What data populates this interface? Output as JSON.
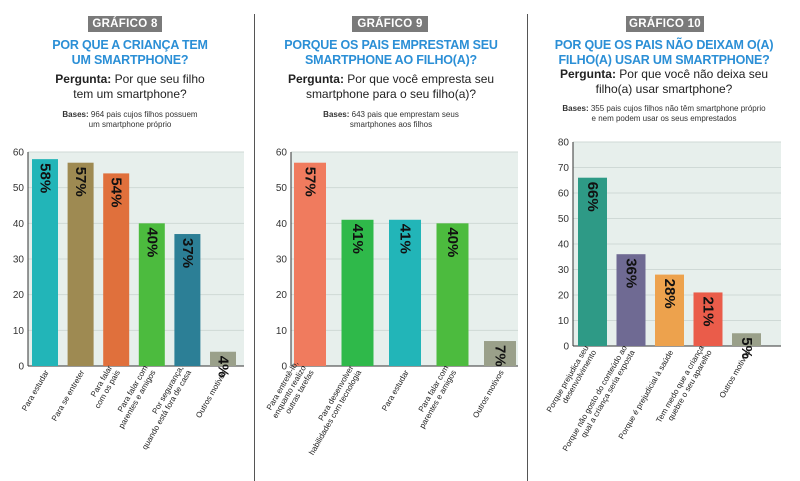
{
  "colors": {
    "title": "#2b8fd6",
    "plot_bg": "#e7efec",
    "badge_bg": "#7a7a7a"
  },
  "chart_data": [
    {
      "type": "bar",
      "badge": "GRÁFICO 8",
      "title_lines": [
        "POR QUE A CRIANÇA TEM",
        "UM SMARTPHONE?"
      ],
      "question_label": "Pergunta:",
      "question_lines": [
        " Por que seu filho",
        "tem um smartphone?"
      ],
      "bases_label": "Bases:",
      "bases_lines": [
        " 964 pais cujos filhos possuem",
        "um smartphone próprio"
      ],
      "ylim": [
        0,
        60
      ],
      "yticks": [
        "0",
        "10",
        "20",
        "30",
        "40",
        "50",
        "60"
      ],
      "ytick_values": [
        0,
        10,
        20,
        30,
        40,
        50,
        60
      ],
      "categories": [
        [
          "Para estudar"
        ],
        [
          "Para se entreter"
        ],
        [
          "Para falar",
          "com os pais"
        ],
        [
          "Para falar com",
          "parentes e amigos"
        ],
        [
          "Por segurança,",
          "quando está fora de casa"
        ],
        [
          "Outros motivos"
        ]
      ],
      "values": [
        58,
        57,
        54,
        40,
        37,
        4
      ],
      "value_labels": [
        "58%",
        "57%",
        "54%",
        "40%",
        "37%",
        "4%"
      ],
      "bar_colors": [
        "#22b5b8",
        "#9e8a52",
        "#e0703c",
        "#4cbb3e",
        "#2c7f96",
        "#9aa08a"
      ]
    },
    {
      "type": "bar",
      "badge": "GRÁFICO 9",
      "title_lines": [
        "PORQUE OS PAIS EMPRESTAM SEU",
        "SMARTPHONE AO FILHO(A)?"
      ],
      "question_label": "Pergunta:",
      "question_lines": [
        " Por que você empresta seu",
        "smartphone para o seu filho(a)?"
      ],
      "bases_label": "Bases:",
      "bases_lines": [
        " 643 pais que emprestam seus",
        "smartphones aos filhos"
      ],
      "ylim": [
        0,
        60
      ],
      "yticks": [
        "0",
        "10",
        "20",
        "30",
        "40",
        "50",
        "60"
      ],
      "ytick_values": [
        0,
        10,
        20,
        30,
        40,
        50,
        60
      ],
      "categories": [
        [
          "Para entretê-lo,",
          "enquanto realizo",
          "outras tarefas"
        ],
        [
          "Para desenvolver",
          "habilidades com tecnologia"
        ],
        [
          "Para estudar"
        ],
        [
          "Para falar com",
          "parentes e amigos"
        ],
        [
          "Outros motivos"
        ]
      ],
      "values": [
        57,
        41,
        41,
        40,
        7
      ],
      "value_labels": [
        "57%",
        "41%",
        "41%",
        "40%",
        "7%"
      ],
      "bar_colors": [
        "#f07b5e",
        "#2fb94a",
        "#22b5b8",
        "#4cbb3e",
        "#9aa08a"
      ]
    },
    {
      "type": "bar",
      "badge": "GRÁFICO 10",
      "title_lines": [
        "POR QUE OS PAIS NÃO DEIXAM O(A)",
        "FILHO(A) USAR UM SMARTPHONE?"
      ],
      "question_label": "Pergunta:",
      "question_lines": [
        " Por que você não deixa seu",
        "filho(a) usar smartphone?"
      ],
      "bases_label": "Bases:",
      "bases_lines": [
        " 355 pais cujos filhos não têm smartphone próprio",
        "e nem podem usar os seus emprestados"
      ],
      "ylim": [
        0,
        80
      ],
      "yticks": [
        "0",
        "10",
        "20",
        "30",
        "40",
        "50",
        "60",
        "70",
        "80"
      ],
      "ytick_values": [
        0,
        10,
        20,
        30,
        40,
        50,
        60,
        70,
        80
      ],
      "categories": [
        [
          "Porque prejudica seu",
          "desenvolvimento"
        ],
        [
          "Porque não gosto do conteúdo ao",
          "qual a criança seria exposta"
        ],
        [
          "Porque é prejudicial à saúde"
        ],
        [
          "Tem medo que a criança",
          "quebre o seu aparelho"
        ],
        [
          "Outros motivos"
        ]
      ],
      "values": [
        66,
        36,
        28,
        21,
        5
      ],
      "value_labels": [
        "66%",
        "36%",
        "28%",
        "21%",
        "5%"
      ],
      "bar_colors": [
        "#2e9a86",
        "#6f6a93",
        "#eda24d",
        "#ea5c4a",
        "#9aa08a"
      ]
    }
  ]
}
